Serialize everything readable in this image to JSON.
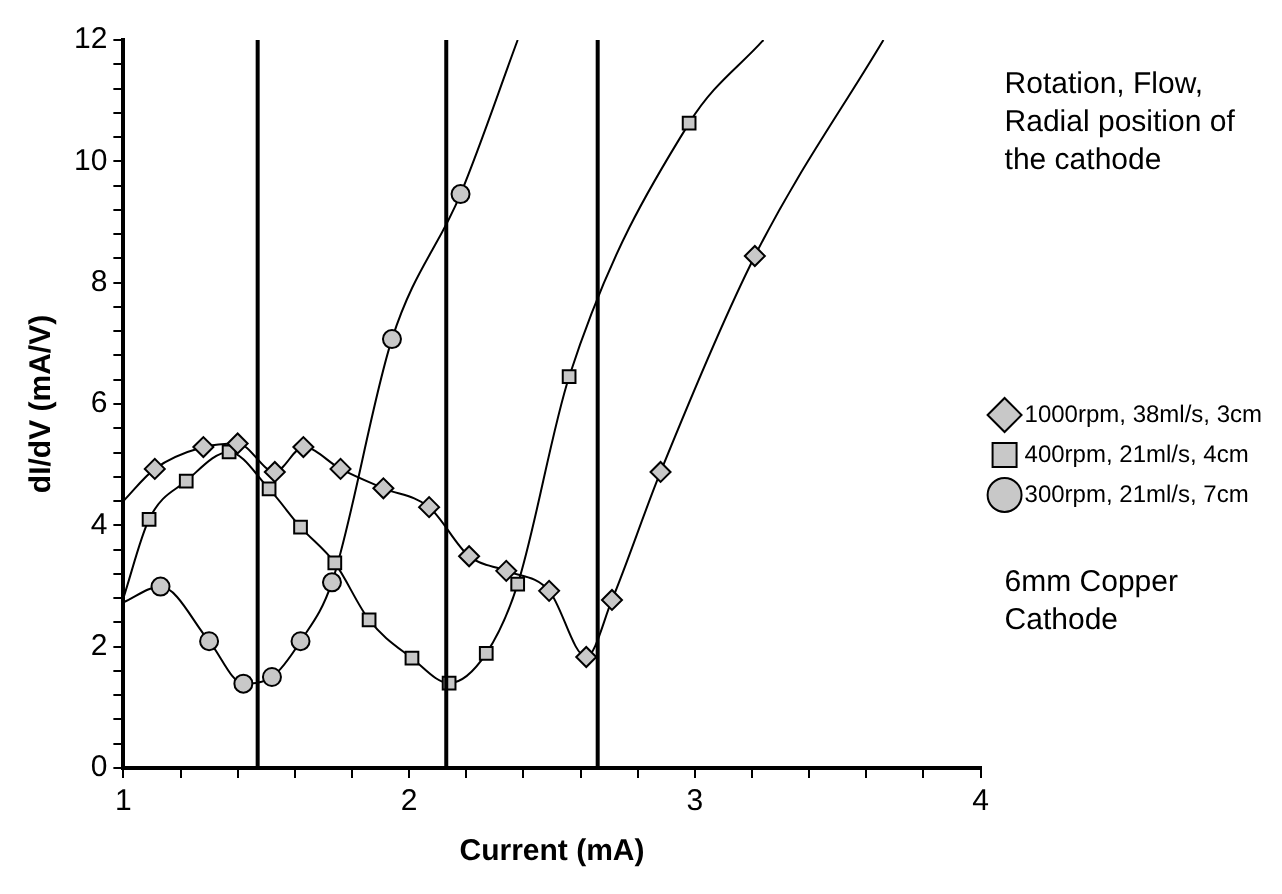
{
  "chart_data": {
    "type": "line",
    "xlabel": "Current (mA)",
    "ylabel": "dI/dV (mA/V)",
    "xlim": [
      1,
      4
    ],
    "xticks": [
      1,
      {
        "value": 1.2,
        "label": null
      },
      {
        "value": 1.4,
        "label": null
      },
      {
        "value": 1.6,
        "label": null
      },
      {
        "value": 1.8,
        "label": null
      },
      2,
      {
        "value": 2.2,
        "label": null
      },
      {
        "value": 2.4,
        "label": null
      },
      {
        "value": 2.6,
        "label": null
      },
      {
        "value": 2.8,
        "label": null
      },
      3,
      {
        "value": 3.2,
        "label": null
      },
      {
        "value": 3.4,
        "label": null
      },
      {
        "value": 3.6,
        "label": null
      },
      {
        "value": 3.8,
        "label": null
      },
      4
    ],
    "ylim": [
      0,
      12
    ],
    "yticks": [
      0,
      {
        "value": 0.4,
        "label": null
      },
      {
        "value": 0.8,
        "label": null
      },
      {
        "value": 1.2,
        "label": null
      },
      {
        "value": 1.6,
        "label": null
      },
      2,
      {
        "value": 2.4,
        "label": null
      },
      {
        "value": 2.8,
        "label": null
      },
      {
        "value": 3.2,
        "label": null
      },
      {
        "value": 3.6,
        "label": null
      },
      4,
      {
        "value": 4.4,
        "label": null
      },
      {
        "value": 4.8,
        "label": null
      },
      {
        "value": 5.2,
        "label": null
      },
      {
        "value": 5.6,
        "label": null
      },
      6,
      {
        "value": 6.4,
        "label": null
      },
      {
        "value": 6.8,
        "label": null
      },
      {
        "value": 7.2,
        "label": null
      },
      {
        "value": 7.6,
        "label": null
      },
      8,
      {
        "value": 8.4,
        "label": null
      },
      {
        "value": 8.8,
        "label": null
      },
      {
        "value": 9.2,
        "label": null
      },
      {
        "value": 9.6,
        "label": null
      },
      10,
      {
        "value": 10.4,
        "label": null
      },
      {
        "value": 10.8,
        "label": null
      },
      {
        "value": 11.2,
        "label": null
      },
      {
        "value": 11.6,
        "label": null
      },
      12
    ],
    "grid": false,
    "legend": "right",
    "series": [
      {
        "name": "1000rpm, 38ml/s, 3cm",
        "color": "#000000",
        "marker": "diamond",
        "x": [
          1,
          1.11,
          1.28,
          1.4,
          1.53,
          1.63,
          1.76,
          1.91,
          2.07,
          2.21,
          2.34,
          2.49,
          2.62,
          2.71,
          2.88,
          3.21,
          3.66
        ],
        "values": [
          4.4,
          4.93,
          5.29,
          5.35,
          4.88,
          5.29,
          4.93,
          4.61,
          4.3,
          3.49,
          3.25,
          2.92,
          1.83,
          2.77,
          4.88,
          8.44,
          12
        ]
      },
      {
        "name": "400rpm, 21ml/s, 4cm",
        "color": "#000000",
        "marker": "square",
        "x": [
          1,
          1.09,
          1.22,
          1.37,
          1.51,
          1.62,
          1.74,
          1.86,
          2.01,
          2.14,
          2.27,
          2.38,
          2.56,
          2.98,
          3.24
        ],
        "values": [
          2.8,
          4.1,
          4.73,
          5.21,
          4.6,
          3.97,
          3.38,
          2.44,
          1.81,
          1.4,
          1.89,
          3.03,
          6.45,
          10.63,
          12
        ]
      },
      {
        "name": "300rpm, 21ml/s, 7cm",
        "color": "#000000",
        "marker": "circle",
        "x": [
          1,
          1.13,
          1.3,
          1.42,
          1.52,
          1.62,
          1.73,
          1.94,
          2.18,
          2.38
        ],
        "values": [
          2.73,
          2.99,
          2.09,
          1.39,
          1.5,
          2.09,
          3.06,
          7.07,
          9.46,
          12
        ]
      }
    ],
    "ref_lines": [
      {
        "axis": "x",
        "value": 1.47,
        "color": "#000000"
      },
      {
        "axis": "x",
        "value": 2.13,
        "color": "#000000"
      },
      {
        "axis": "x",
        "value": 2.66,
        "color": "#000000"
      }
    ],
    "annotations": [
      "Rotation, Flow, Radial position of the cathode",
      "6mm Copper Cathode"
    ]
  }
}
